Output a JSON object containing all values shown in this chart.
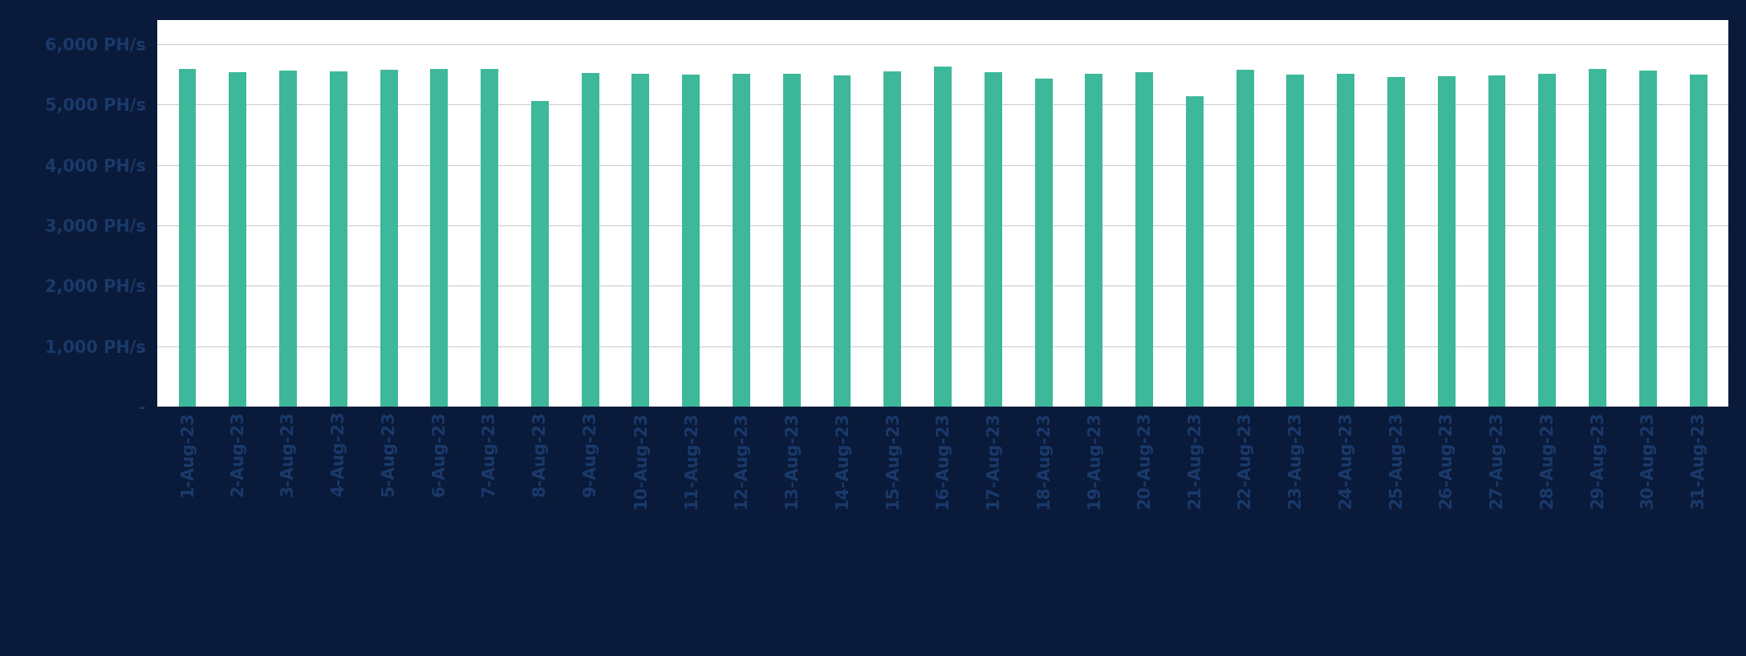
{
  "categories": [
    "1-Aug-23",
    "2-Aug-23",
    "3-Aug-23",
    "4-Aug-23",
    "5-Aug-23",
    "6-Aug-23",
    "7-Aug-23",
    "8-Aug-23",
    "9-Aug-23",
    "10-Aug-23",
    "11-Aug-23",
    "12-Aug-23",
    "13-Aug-23",
    "14-Aug-23",
    "15-Aug-23",
    "16-Aug-23",
    "17-Aug-23",
    "18-Aug-23",
    "19-Aug-23",
    "20-Aug-23",
    "21-Aug-23",
    "22-Aug-23",
    "23-Aug-23",
    "24-Aug-23",
    "25-Aug-23",
    "26-Aug-23",
    "27-Aug-23",
    "28-Aug-23",
    "29-Aug-23",
    "30-Aug-23",
    "31-Aug-23"
  ],
  "values": [
    5580,
    5530,
    5560,
    5550,
    5570,
    5580,
    5590,
    5060,
    5520,
    5510,
    5490,
    5500,
    5510,
    5480,
    5550,
    5620,
    5530,
    5430,
    5510,
    5530,
    5130,
    5570,
    5490,
    5510,
    5450,
    5470,
    5480,
    5500,
    5580,
    5560,
    5490
  ],
  "bar_color": "#3db89a",
  "background_color": "#0a1a3a",
  "plot_bg_color": "#ffffff",
  "ytick_labels": [
    "-",
    "1,000 PH/s",
    "2,000 PH/s",
    "3,000 PH/s",
    "4,000 PH/s",
    "5,000 PH/s",
    "6,000 PH/s"
  ],
  "ytick_values": [
    0,
    1000,
    2000,
    3000,
    4000,
    5000,
    6000
  ],
  "ylim": [
    0,
    6400
  ],
  "grid_color": "#cccccc",
  "tick_color": "#1a3a6b",
  "tick_label_fontsize": 15,
  "bar_width": 0.35
}
